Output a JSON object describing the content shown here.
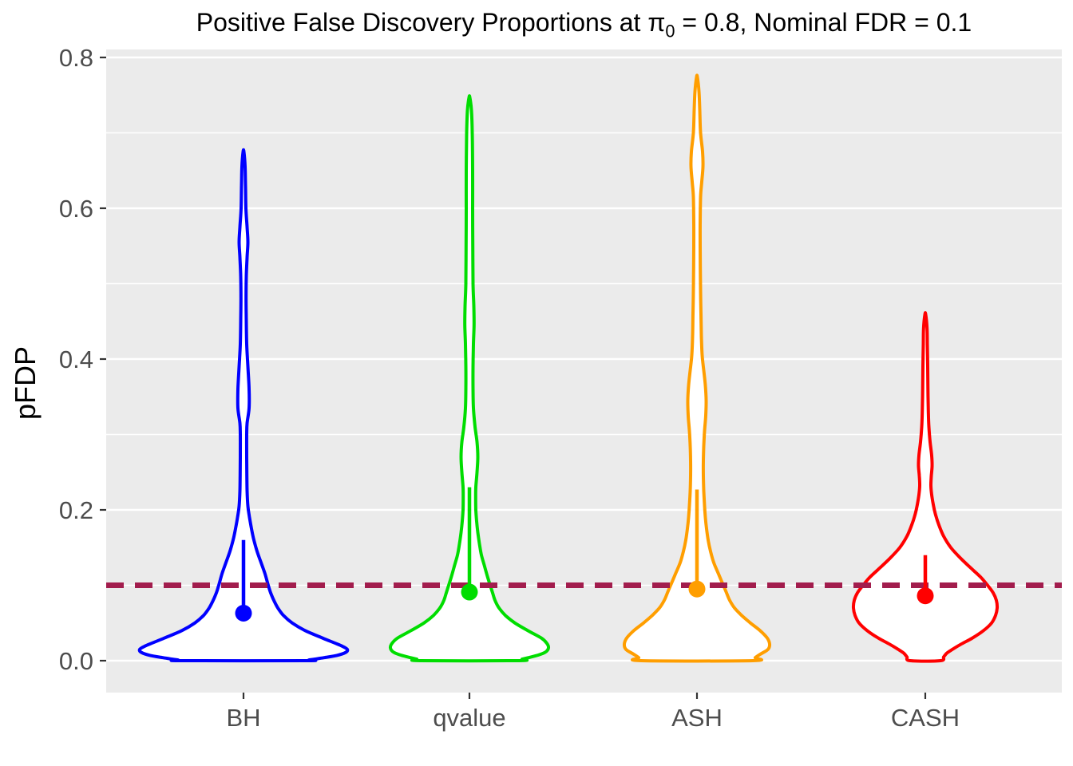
{
  "title": {
    "prefix": "Positive False Discovery Proportions at π",
    "subscript": "0",
    "suffix": " = 0.8, Nominal FDR = 0.1"
  },
  "panel": {
    "background": "#EBEBEB",
    "grid_color": "#FFFFFF",
    "tick_color": "#333333",
    "axis_text_color": "#4D4D4D"
  },
  "y_axis": {
    "label": "pFDP",
    "ticks": [
      {
        "value": 0.8,
        "label": "0.8"
      },
      {
        "value": 0.6,
        "label": "0.6"
      },
      {
        "value": 0.4,
        "label": "0.4"
      },
      {
        "value": 0.2,
        "label": "0.2"
      },
      {
        "value": 0.0,
        "label": "0.0"
      }
    ],
    "minor_ticks": [
      0.1,
      0.3,
      0.5,
      0.7
    ]
  },
  "x_axis": {
    "categories": [
      "BH",
      "qvalue",
      "ASH",
      "CASH"
    ]
  },
  "threshold": {
    "label": "Nominal FDR",
    "value": 0.1,
    "color": "#A21D4D",
    "style": "dashed"
  },
  "chart_data": {
    "type": "violin",
    "title": "Positive False Discovery Proportions at π0 = 0.8, Nominal FDR = 0.1",
    "xlabel": "",
    "ylabel": "pFDP",
    "ylim": [
      -0.04,
      0.81
    ],
    "grid": true,
    "categories": [
      "BH",
      "qvalue",
      "ASH",
      "CASH"
    ],
    "nominal_fdr_line": 0.1,
    "series": [
      {
        "name": "BH",
        "color": "#0000FF",
        "fill": "#FFFFFF",
        "mean": 0.063,
        "segment_top": 0.16,
        "max": 0.675,
        "min": 0.0,
        "profile": [
          [
            0.675,
            0.5
          ],
          [
            0.655,
            2
          ],
          [
            0.63,
            2.5
          ],
          [
            0.6,
            3
          ],
          [
            0.575,
            4.5
          ],
          [
            0.555,
            5.5
          ],
          [
            0.535,
            4.5
          ],
          [
            0.51,
            3.5
          ],
          [
            0.48,
            3.2
          ],
          [
            0.45,
            3.5
          ],
          [
            0.42,
            4
          ],
          [
            0.39,
            5.5
          ],
          [
            0.36,
            7
          ],
          [
            0.335,
            7
          ],
          [
            0.315,
            4.5
          ],
          [
            0.3,
            4
          ],
          [
            0.27,
            4
          ],
          [
            0.245,
            4.2
          ],
          [
            0.225,
            4.5
          ],
          [
            0.205,
            5.5
          ],
          [
            0.19,
            7.5
          ],
          [
            0.175,
            10
          ],
          [
            0.16,
            13
          ],
          [
            0.145,
            17
          ],
          [
            0.13,
            22
          ],
          [
            0.115,
            27
          ],
          [
            0.1,
            31
          ],
          [
            0.09,
            34
          ],
          [
            0.08,
            38
          ],
          [
            0.07,
            43
          ],
          [
            0.06,
            50
          ],
          [
            0.05,
            61
          ],
          [
            0.04,
            77
          ],
          [
            0.03,
            99
          ],
          [
            0.024,
            113
          ],
          [
            0.019,
            124
          ],
          [
            0.015,
            130
          ],
          [
            0.011,
            128
          ],
          [
            0.007,
            117
          ],
          [
            0.004,
            101
          ],
          [
            0.002,
            89
          ],
          [
            0.001,
            82
          ],
          [
            0.0,
            78
          ]
        ]
      },
      {
        "name": "qvalue",
        "color": "#00DD00",
        "fill": "#FFFFFF",
        "mean": 0.091,
        "segment_top": 0.23,
        "max": 0.747,
        "min": 0.0,
        "profile": [
          [
            0.747,
            0.5
          ],
          [
            0.73,
            2.5
          ],
          [
            0.7,
            3.5
          ],
          [
            0.65,
            4
          ],
          [
            0.6,
            4
          ],
          [
            0.55,
            4.2
          ],
          [
            0.5,
            4.5
          ],
          [
            0.47,
            5.5
          ],
          [
            0.445,
            5.8
          ],
          [
            0.42,
            5
          ],
          [
            0.39,
            4.5
          ],
          [
            0.36,
            4.5
          ],
          [
            0.335,
            5
          ],
          [
            0.31,
            7
          ],
          [
            0.29,
            9.5
          ],
          [
            0.27,
            10.5
          ],
          [
            0.25,
            9.5
          ],
          [
            0.23,
            8
          ],
          [
            0.215,
            7.8
          ],
          [
            0.2,
            8
          ],
          [
            0.185,
            9
          ],
          [
            0.17,
            10.5
          ],
          [
            0.155,
            12.5
          ],
          [
            0.14,
            15
          ],
          [
            0.125,
            19
          ],
          [
            0.11,
            23
          ],
          [
            0.1,
            26
          ],
          [
            0.09,
            29
          ],
          [
            0.08,
            32
          ],
          [
            0.07,
            37
          ],
          [
            0.06,
            45
          ],
          [
            0.05,
            57
          ],
          [
            0.04,
            73
          ],
          [
            0.03,
            90
          ],
          [
            0.023,
            97
          ],
          [
            0.017,
            99
          ],
          [
            0.012,
            96
          ],
          [
            0.008,
            88
          ],
          [
            0.004,
            74
          ],
          [
            0.002,
            66
          ],
          [
            0.0,
            62
          ]
        ]
      },
      {
        "name": "ASH",
        "color": "#FF9E00",
        "fill": "#FFFFFF",
        "mean": 0.095,
        "segment_top": 0.227,
        "max": 0.774,
        "min": 0.0,
        "profile": [
          [
            0.774,
            0.5
          ],
          [
            0.755,
            2.5
          ],
          [
            0.73,
            3.5
          ],
          [
            0.7,
            4.5
          ],
          [
            0.675,
            7
          ],
          [
            0.655,
            7.5
          ],
          [
            0.635,
            6
          ],
          [
            0.615,
            4.5
          ],
          [
            0.58,
            4
          ],
          [
            0.55,
            4
          ],
          [
            0.52,
            4.2
          ],
          [
            0.49,
            4.5
          ],
          [
            0.46,
            5
          ],
          [
            0.43,
            5.5
          ],
          [
            0.405,
            6.5
          ],
          [
            0.385,
            8.5
          ],
          [
            0.365,
            10.5
          ],
          [
            0.345,
            11.5
          ],
          [
            0.325,
            11
          ],
          [
            0.305,
            9.5
          ],
          [
            0.285,
            8.5
          ],
          [
            0.265,
            8
          ],
          [
            0.245,
            8
          ],
          [
            0.225,
            8.5
          ],
          [
            0.205,
            9.5
          ],
          [
            0.19,
            10.5
          ],
          [
            0.175,
            12
          ],
          [
            0.16,
            14
          ],
          [
            0.145,
            17
          ],
          [
            0.13,
            21
          ],
          [
            0.115,
            27
          ],
          [
            0.1,
            33
          ],
          [
            0.09,
            37
          ],
          [
            0.08,
            41
          ],
          [
            0.07,
            47
          ],
          [
            0.06,
            56
          ],
          [
            0.05,
            67
          ],
          [
            0.04,
            79
          ],
          [
            0.03,
            88
          ],
          [
            0.022,
            91
          ],
          [
            0.015,
            89
          ],
          [
            0.009,
            80
          ],
          [
            0.004,
            73
          ],
          [
            0.0,
            70
          ]
        ]
      },
      {
        "name": "CASH",
        "color": "#FF0000",
        "fill": "#FFFFFF",
        "mean": 0.086,
        "segment_top": 0.14,
        "max": 0.459,
        "min": 0.0,
        "profile": [
          [
            0.459,
            0.5
          ],
          [
            0.44,
            2.2
          ],
          [
            0.42,
            2.5
          ],
          [
            0.39,
            3
          ],
          [
            0.36,
            3.3
          ],
          [
            0.33,
            3.8
          ],
          [
            0.31,
            4.5
          ],
          [
            0.29,
            6
          ],
          [
            0.272,
            8
          ],
          [
            0.258,
            8.5
          ],
          [
            0.245,
            7.5
          ],
          [
            0.232,
            7
          ],
          [
            0.22,
            8
          ],
          [
            0.207,
            10
          ],
          [
            0.193,
            13
          ],
          [
            0.18,
            17
          ],
          [
            0.165,
            23
          ],
          [
            0.15,
            32
          ],
          [
            0.135,
            45
          ],
          [
            0.12,
            60
          ],
          [
            0.11,
            70
          ],
          [
            0.1,
            78
          ],
          [
            0.09,
            85
          ],
          [
            0.08,
            89
          ],
          [
            0.07,
            90
          ],
          [
            0.06,
            88
          ],
          [
            0.05,
            83
          ],
          [
            0.04,
            73
          ],
          [
            0.03,
            59
          ],
          [
            0.022,
            45
          ],
          [
            0.015,
            34
          ],
          [
            0.01,
            27
          ],
          [
            0.005,
            23
          ],
          [
            0.0,
            19
          ]
        ]
      }
    ]
  }
}
